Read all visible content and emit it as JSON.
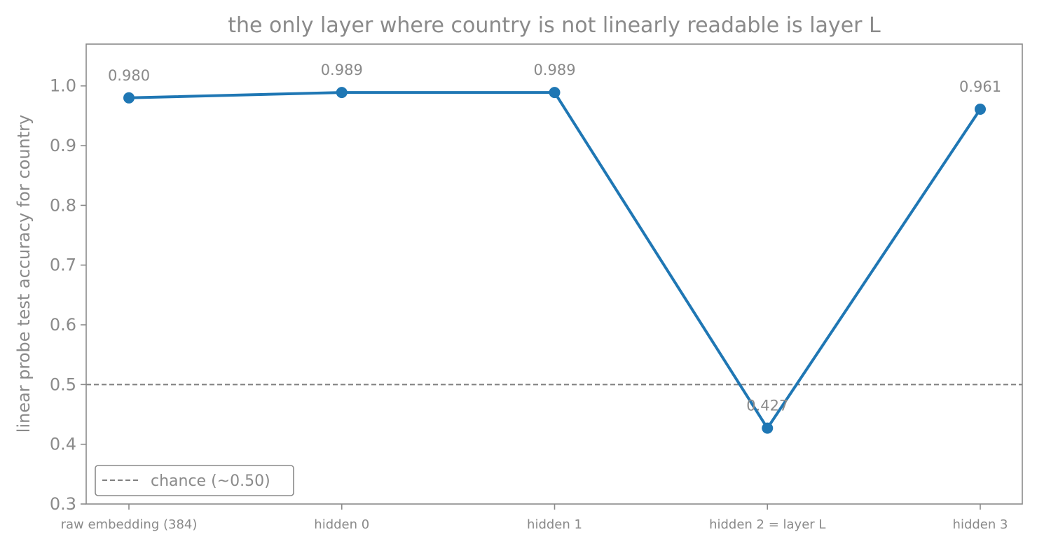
{
  "chart_data": {
    "type": "line",
    "title": "the only layer where country is not linearly readable is layer L",
    "xlabel": "",
    "ylabel": "linear probe test accuracy for country",
    "categories": [
      "raw embedding (384)",
      "hidden 0",
      "hidden 1",
      "hidden 2 = layer L",
      "hidden 3"
    ],
    "series": [
      {
        "values": [
          0.98,
          0.989,
          0.989,
          0.427,
          0.961
        ],
        "labels": [
          "0.980",
          "0.989",
          "0.989",
          "0.427",
          "0.961"
        ],
        "color": "#1f77b4"
      }
    ],
    "ylim": [
      0.3,
      1.07
    ],
    "yticks": [
      "0.3",
      "0.4",
      "0.5",
      "0.6",
      "0.7",
      "0.8",
      "0.9",
      "1.0"
    ],
    "reference_line": {
      "value": 0.5,
      "label": "chance (~0.50)",
      "style": "dashed",
      "color": "#808080"
    },
    "legend": {
      "placement": "bottom-left",
      "entries": [
        "chance (~0.50)"
      ]
    },
    "grid": false
  }
}
